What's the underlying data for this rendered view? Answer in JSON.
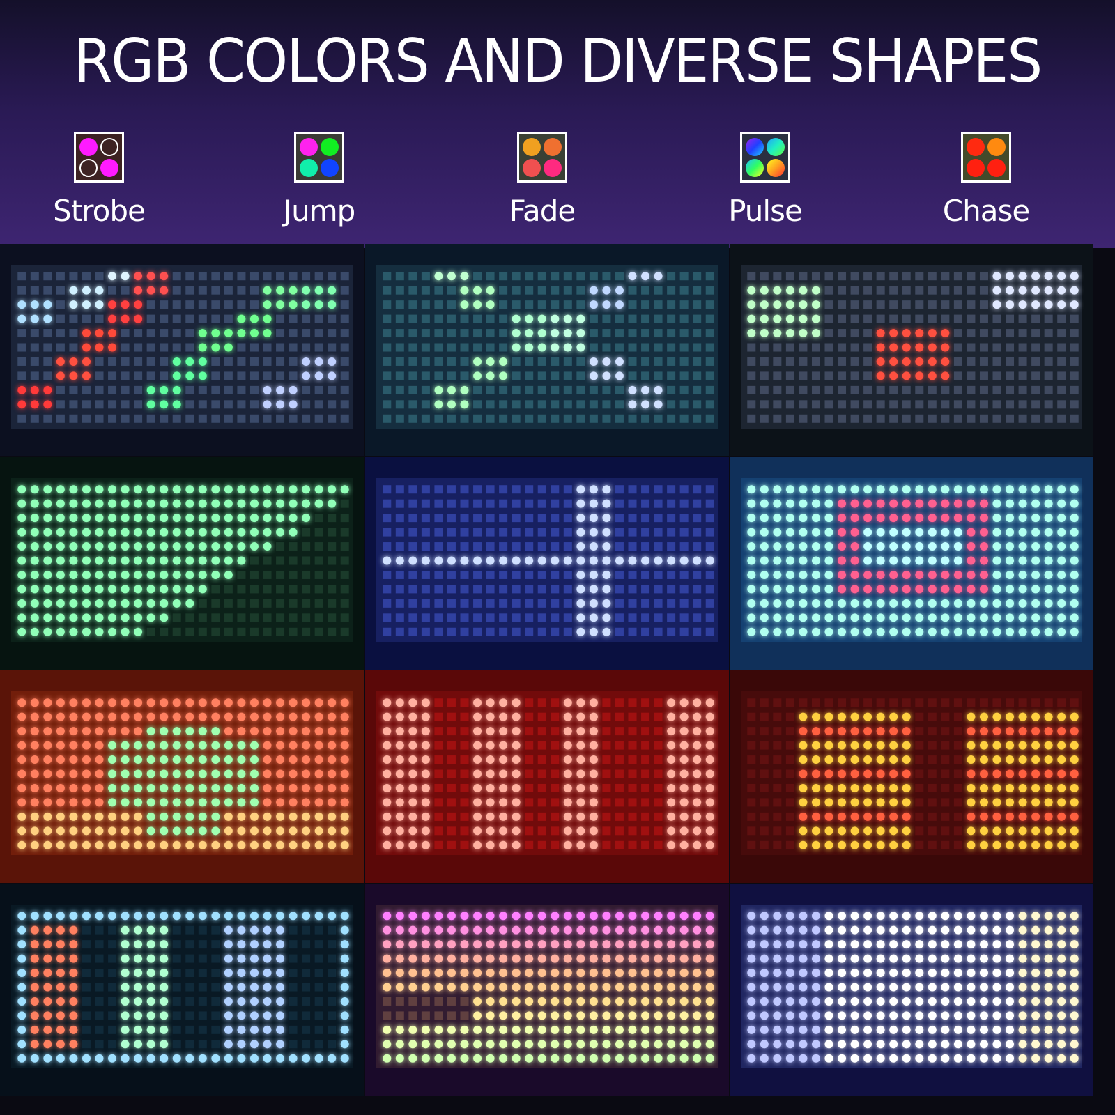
{
  "title": "RGB COLORS AND DIVERSE SHAPES",
  "modes": [
    {
      "label": "Strobe",
      "icon": "strobe-icon",
      "colors": [
        "#ff1aff",
        "outline",
        "outline",
        "#ff1aff"
      ],
      "bg": "#3d2222"
    },
    {
      "label": "Jump",
      "icon": "jump-icon",
      "colors": [
        "#ff22ee",
        "#11ee22",
        "#11eeaa",
        "#1144ff"
      ],
      "bg": "#3a3a34"
    },
    {
      "label": "Fade",
      "icon": "fade-icon",
      "colors": [
        "#f0a020",
        "#f07030",
        "#f05050",
        "#ff2a80"
      ],
      "bg": "#3a4034"
    },
    {
      "label": "Pulse",
      "icon": "pulse-icon",
      "colors": [
        "linear-gradient(135deg,#a020f0,#2040ff,#20d0ff)",
        "linear-gradient(135deg,#20a0ff,#20f0c0,#60ff40)",
        "linear-gradient(135deg,#20c0ff,#30ff60,#ffff20)",
        "linear-gradient(135deg,#ffff20,#ffa020,#ff3030)"
      ],
      "bg": "#2a3040"
    },
    {
      "label": "Chase",
      "icon": "chase-icon",
      "colors": [
        "#ff2a10",
        "#ff8a10",
        "#ff2010",
        "#ff2010"
      ],
      "bg": "#444a2a"
    }
  ],
  "panels": [
    {
      "pattern": "strobe-blocks",
      "frame": "#0c1020"
    },
    {
      "pattern": "jump-blocks",
      "frame": "#0a1828"
    },
    {
      "pattern": "chase-blocks",
      "frame": "#0c1218"
    },
    {
      "pattern": "green-triangle",
      "frame": "#061410"
    },
    {
      "pattern": "blue-cross",
      "frame": "#0a1040"
    },
    {
      "pattern": "cyan-red-frame",
      "frame": "#10305a"
    },
    {
      "pattern": "orange-green-center",
      "frame": "#5a1408"
    },
    {
      "pattern": "red-columns",
      "frame": "#5a0808"
    },
    {
      "pattern": "red-two-blocks",
      "frame": "#3a0808"
    },
    {
      "pattern": "blue-border-columns",
      "frame": "#06101a"
    },
    {
      "pattern": "rainbow-rows",
      "frame": "#1a0a2a"
    },
    {
      "pattern": "white-purple",
      "frame": "#101040"
    }
  ]
}
